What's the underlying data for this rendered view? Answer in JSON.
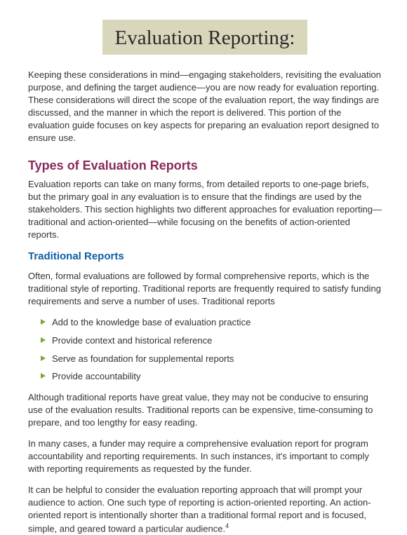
{
  "title": "Evaluation Reporting:",
  "intro": "Keeping these considerations in mind—engaging stakeholders, revisiting the evaluation purpose, and defining the target audience—you are now ready for evaluation reporting. These considerations will direct the scope of the evaluation report, the way findings are discussed, and the manner in which the report is delivered. This portion of the evaluation guide focuses on key aspects for preparing an evaluation report designed to ensure use.",
  "section1": {
    "heading": "Types of Evaluation Reports",
    "body": "Evaluation reports can take on many forms, from detailed reports to one-page briefs, but the primary goal in any evaluation is to ensure that the findings are used by the stakeholders. This section highlights two different approaches for evaluation reporting—traditional and action-oriented—while focusing on the benefits of action-oriented reports."
  },
  "subsection1": {
    "heading": "Traditional Reports",
    "lead": "Often, formal evaluations are followed by formal comprehensive reports, which is the traditional style of reporting. Traditional reports are frequently required to satisfy funding requirements and serve a number of uses. Traditional reports",
    "bullets": [
      "Add to the knowledge base of evaluation practice",
      "Provide context and historical reference",
      "Serve as foundation for supplemental reports",
      "Provide accountability"
    ],
    "p2": "Although traditional reports have great value, they may not be conducive to ensuring use of the evaluation results. Traditional reports can be expensive, time-consuming to prepare, and too lengthy for easy reading.",
    "p3": "In many cases, a funder may require a comprehensive evaluation report for program accountability and reporting requirements. In such instances, it's important to comply with reporting requirements as requested by the funder.",
    "p4": "It can be helpful to consider the evaluation reporting approach that will prompt your audience to action. One such type of reporting is action-oriented reporting. An action-oriented report is intentionally shorter than a traditional formal report and is focused, simple, and geared toward a particular audience.",
    "footnote": "4"
  }
}
